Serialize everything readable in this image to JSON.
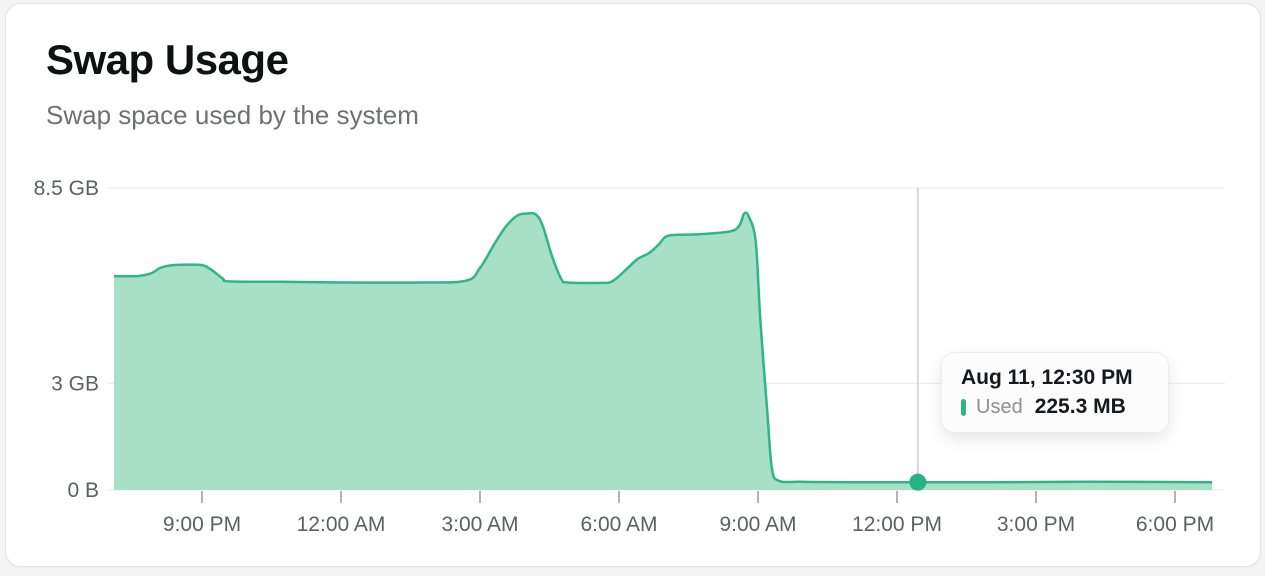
{
  "card": {
    "title": "Swap Usage",
    "subtitle": "Swap space used by the system"
  },
  "tooltip": {
    "timestamp": "Aug 11, 12:30 PM",
    "series_label": "Used",
    "value": "225.3 MB"
  },
  "colors": {
    "accent_stroke": "#2eb58a",
    "accent_fill": "#a8dfc7",
    "dot": "#26b284",
    "grid": "#ebebed",
    "crosshair": "#d7d7da",
    "tick": "#97989c",
    "axis_text": "#5c5f63"
  },
  "chart_data": {
    "type": "area",
    "title": "Swap Usage",
    "ylabel": "",
    "xlabel": "",
    "ylim_gb": [
      0,
      8.5
    ],
    "xlim_hours_since_aug10_midnight": [
      19.1,
      42.8
    ],
    "grid": "horizontal",
    "legend_position": "tooltip",
    "y_ticks": [
      {
        "gb": 8.5,
        "label": "8.5 GB"
      },
      {
        "gb": 3,
        "label": "3 GB"
      },
      {
        "gb": 0,
        "label": "0 B"
      }
    ],
    "x_ticks": [
      {
        "t": 21,
        "label": "9:00 PM"
      },
      {
        "t": 24,
        "label": "12:00 AM"
      },
      {
        "t": 27,
        "label": "3:00 AM"
      },
      {
        "t": 30,
        "label": "6:00 AM"
      },
      {
        "t": 33,
        "label": "9:00 AM"
      },
      {
        "t": 36,
        "label": "12:00 PM"
      },
      {
        "t": 39,
        "label": "3:00 PM"
      },
      {
        "t": 42,
        "label": "6:00 PM"
      }
    ],
    "series": [
      {
        "name": "Used",
        "unit": "GB",
        "points": [
          [
            19.1,
            6.02
          ],
          [
            19.6,
            6.02
          ],
          [
            19.9,
            6.1
          ],
          [
            20.1,
            6.25
          ],
          [
            20.3,
            6.32
          ],
          [
            20.6,
            6.34
          ],
          [
            21.0,
            6.33
          ],
          [
            21.2,
            6.2
          ],
          [
            21.45,
            5.95
          ],
          [
            21.6,
            5.87
          ],
          [
            22.7,
            5.86
          ],
          [
            24.0,
            5.84
          ],
          [
            25.7,
            5.84
          ],
          [
            26.7,
            5.89
          ],
          [
            27.0,
            6.25
          ],
          [
            27.3,
            6.9
          ],
          [
            27.55,
            7.4
          ],
          [
            27.8,
            7.72
          ],
          [
            28.0,
            7.78
          ],
          [
            28.2,
            7.76
          ],
          [
            28.35,
            7.45
          ],
          [
            28.55,
            6.6
          ],
          [
            28.75,
            5.95
          ],
          [
            28.9,
            5.84
          ],
          [
            29.6,
            5.83
          ],
          [
            29.85,
            5.87
          ],
          [
            30.15,
            6.2
          ],
          [
            30.4,
            6.5
          ],
          [
            30.65,
            6.67
          ],
          [
            30.85,
            6.9
          ],
          [
            31.0,
            7.12
          ],
          [
            31.2,
            7.18
          ],
          [
            31.75,
            7.2
          ],
          [
            32.4,
            7.28
          ],
          [
            32.6,
            7.45
          ],
          [
            32.7,
            7.78
          ],
          [
            32.8,
            7.7
          ],
          [
            32.95,
            7.0
          ],
          [
            33.05,
            4.8
          ],
          [
            33.2,
            2.2
          ],
          [
            33.3,
            0.6
          ],
          [
            33.45,
            0.26
          ],
          [
            33.9,
            0.23
          ],
          [
            35.0,
            0.22
          ],
          [
            36.45,
            0.22
          ],
          [
            38.0,
            0.22
          ],
          [
            40.0,
            0.23
          ],
          [
            42.8,
            0.22
          ]
        ]
      }
    ],
    "highlight": {
      "t": 36.45,
      "gb": 0.22,
      "time_label": "Aug 11, 12:30 PM",
      "value_label": "225.3 MB"
    }
  }
}
